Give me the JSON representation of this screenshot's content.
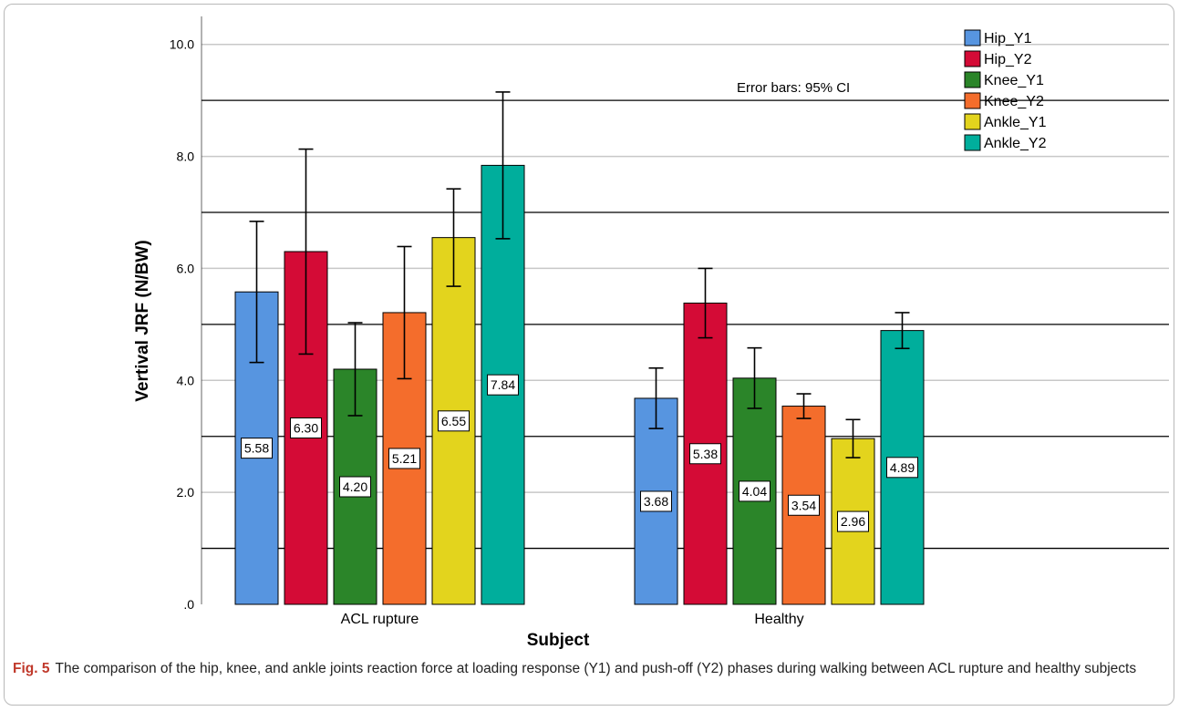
{
  "chart_data": {
    "type": "bar",
    "categories": [
      "ACL rupture",
      "Healthy"
    ],
    "series": [
      {
        "name": "Hip_Y1",
        "color": "#5795e0",
        "values": [
          5.58,
          3.68
        ],
        "ci_low": [
          4.32,
          3.14
        ],
        "ci_high": [
          6.84,
          4.22
        ],
        "labels": [
          "5.58",
          "3.68"
        ]
      },
      {
        "name": "Hip_Y2",
        "color": "#d40b36",
        "values": [
          6.3,
          5.38
        ],
        "ci_low": [
          4.47,
          4.76
        ],
        "ci_high": [
          8.13,
          6.0
        ],
        "labels": [
          "6.30",
          "5.38"
        ]
      },
      {
        "name": "Knee_Y1",
        "color": "#2b8529",
        "values": [
          4.2,
          4.04
        ],
        "ci_low": [
          3.37,
          3.5
        ],
        "ci_high": [
          5.03,
          4.58
        ],
        "labels": [
          "4.20",
          "4.04"
        ]
      },
      {
        "name": "Knee_Y2",
        "color": "#f46d2c",
        "values": [
          5.21,
          3.54
        ],
        "ci_low": [
          4.03,
          3.32
        ],
        "ci_high": [
          6.39,
          3.76
        ],
        "labels": [
          "5.21",
          "3.54"
        ]
      },
      {
        "name": "Ankle_Y1",
        "color": "#e3d41d",
        "values": [
          6.55,
          2.96
        ],
        "ci_low": [
          5.68,
          2.62
        ],
        "ci_high": [
          7.42,
          3.3
        ],
        "labels": [
          "6.55",
          "2.96"
        ]
      },
      {
        "name": "Ankle_Y2",
        "color": "#00ae9c",
        "values": [
          7.84,
          4.89
        ],
        "ci_low": [
          6.53,
          4.57
        ],
        "ci_high": [
          9.15,
          5.21
        ],
        "labels": [
          "7.84",
          "4.89"
        ]
      }
    ],
    "xlabel": "Subject",
    "ylabel": "Vertival JRF (N/BW)",
    "ylim": [
      0,
      10.5
    ],
    "yticks": [
      0,
      2,
      4,
      6,
      8,
      10
    ],
    "ytick_labels": [
      ".0",
      "2.0",
      "4.0",
      "6.0",
      "8.0",
      "10.0"
    ],
    "grid_dark": [
      1,
      3,
      5,
      7,
      9
    ],
    "grid_light": [
      2,
      4,
      6,
      8,
      10
    ],
    "annotation": "Error bars: 95% CI",
    "legend_position": "top-right"
  },
  "caption": {
    "figure_number": "Fig. 5",
    "text": "The comparison of the hip, knee, and ankle joints reaction force at loading response (Y1) and push-off (Y2) phases during walking between ACL rupture and healthy subjects"
  }
}
